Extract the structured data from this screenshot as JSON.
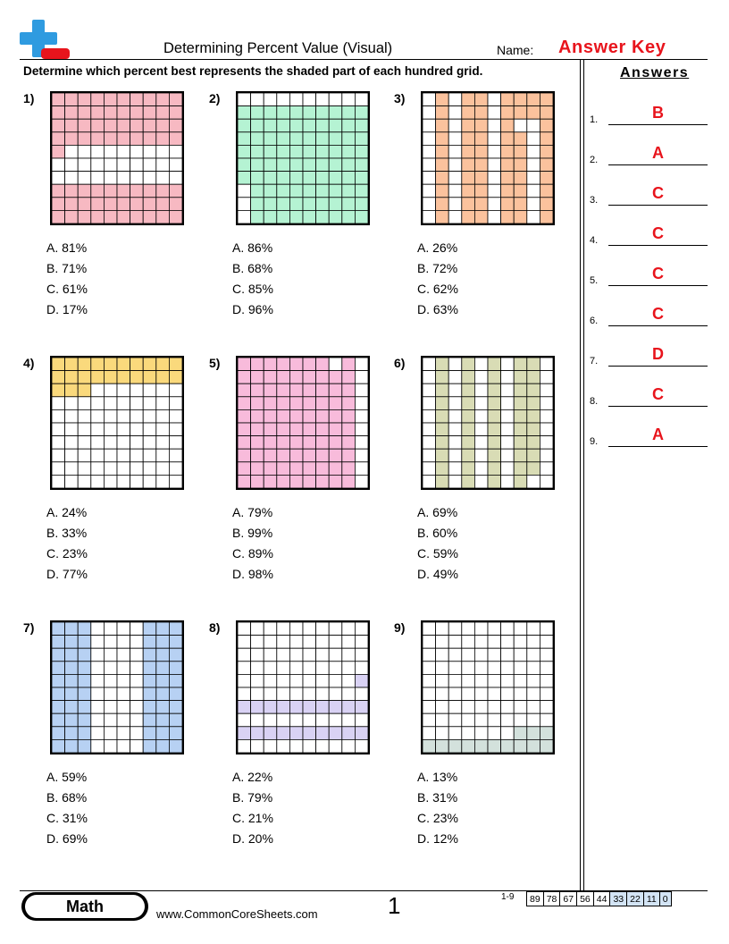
{
  "header": {
    "title": "Determining Percent Value (Visual)",
    "name_label": "Name:",
    "answer_key": "Answer Key",
    "instructions": "Determine which percent best represents the shaded part of each hundred grid."
  },
  "answers_heading": "Answers",
  "answers": [
    {
      "num": "1.",
      "letter": "B"
    },
    {
      "num": "2.",
      "letter": "A"
    },
    {
      "num": "3.",
      "letter": "C"
    },
    {
      "num": "4.",
      "letter": "C"
    },
    {
      "num": "5.",
      "letter": "C"
    },
    {
      "num": "6.",
      "letter": "C"
    },
    {
      "num": "7.",
      "letter": "D"
    },
    {
      "num": "8.",
      "letter": "C"
    },
    {
      "num": "9.",
      "letter": "A"
    }
  ],
  "questions": [
    {
      "num": "1)",
      "color": "#f7b9c2",
      "options": [
        "A. 81%",
        "B. 71%",
        "C. 61%",
        "D. 17%"
      ]
    },
    {
      "num": "2)",
      "color": "#b5f3d3",
      "options": [
        "A. 86%",
        "B. 68%",
        "C. 85%",
        "D. 96%"
      ]
    },
    {
      "num": "3)",
      "color": "#fbc29d",
      "options": [
        "A. 26%",
        "B. 72%",
        "C. 62%",
        "D. 63%"
      ]
    },
    {
      "num": "4)",
      "color": "#fad97c",
      "options": [
        "A. 24%",
        "B. 33%",
        "C. 23%",
        "D. 77%"
      ]
    },
    {
      "num": "5)",
      "color": "#f8bbdb",
      "options": [
        "A. 79%",
        "B. 99%",
        "C. 89%",
        "D. 98%"
      ]
    },
    {
      "num": "6)",
      "color": "#d9dcb5",
      "options": [
        "A. 69%",
        "B. 60%",
        "C. 59%",
        "D. 49%"
      ]
    },
    {
      "num": "7)",
      "color": "#b7d1f3",
      "options": [
        "A. 59%",
        "B. 68%",
        "C. 31%",
        "D. 69%"
      ]
    },
    {
      "num": "8)",
      "color": "#d9d2f4",
      "options": [
        "A. 22%",
        "B. 79%",
        "C. 21%",
        "D. 20%"
      ]
    },
    {
      "num": "9)",
      "color": "#d3e1dc",
      "options": [
        "A. 13%",
        "B. 31%",
        "C. 23%",
        "D. 12%"
      ]
    }
  ],
  "footer": {
    "subject": "Math",
    "website": "www.CommonCoreSheets.com",
    "page": "1",
    "score_label": "1-9",
    "scores": [
      "89",
      "78",
      "67",
      "56",
      "44",
      "33",
      "22",
      "11",
      "0"
    ]
  },
  "logo_colors": {
    "plus": "#2f9be0",
    "minus": "#e8141c"
  }
}
